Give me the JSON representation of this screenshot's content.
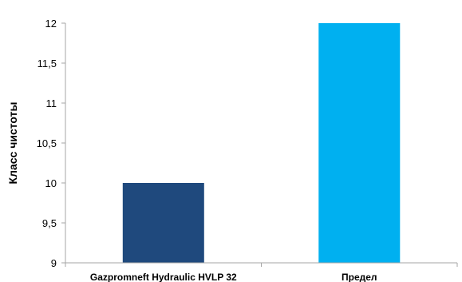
{
  "chart_data": {
    "type": "bar",
    "categories": [
      "Gazpromneft Hydraulic HVLP 32",
      "Предел"
    ],
    "values": [
      10,
      12
    ],
    "colors": [
      "#1f497d",
      "#00b0f0"
    ],
    "xlabel": "",
    "ylabel": "Класс чистоты",
    "ylim": [
      9,
      12
    ],
    "yticks": [
      9,
      9.5,
      10,
      10.5,
      11,
      11.5,
      12
    ],
    "ytick_labels": [
      "9",
      "9,5",
      "10",
      "10,5",
      "11",
      "11,5",
      "12"
    ],
    "grid": false,
    "legend": "none",
    "axis_color": "#a6a6a6"
  }
}
